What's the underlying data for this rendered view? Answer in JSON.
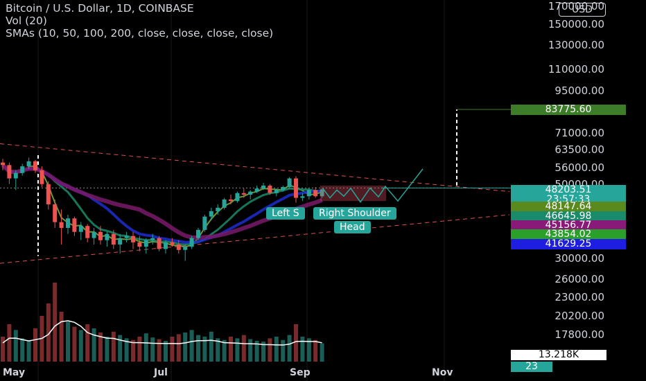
{
  "legend": {
    "symbol": "Bitcoin / U.S. Dollar, 1D, COINBASE",
    "volume": "Vol (20)",
    "smas": "SMAs (10, 50, 100, 200, close, close, close, close)"
  },
  "currency_button": "USD",
  "colors": {
    "background": "#000000",
    "up_candle": "#26a69a",
    "down_candle": "#ef5350",
    "sma10": "#7fb342",
    "sma50": "#1a8b6a",
    "sma100": "#1e2ccf",
    "sma200": "#7a1a6a",
    "channel": "#e05050",
    "pattern": "#26a69a"
  },
  "chart_data": [
    {
      "type": "candlestick",
      "title": "Bitcoin / U.S. Dollar, 1D, COINBASE",
      "x_ticks": [
        "May",
        "Jul",
        "Sep",
        "Nov"
      ],
      "y_ticks": [
        "170000.00",
        "150000.00",
        "130000.00",
        "110000.00",
        "95000.00",
        "71000.00",
        "63500.00",
        "56000.00",
        "50000.00",
        "30000.00",
        "26000.00",
        "23000.00",
        "20200.00",
        "17800.00"
      ],
      "scale": "log",
      "ylim": [
        15500,
        180000
      ],
      "price_tags": [
        {
          "value": "83775.60",
          "color": "#3d7d2a",
          "label": "target"
        },
        {
          "value": "48203.51",
          "color": "#26a69a",
          "label": "last price"
        },
        {
          "value": "23:57:33",
          "color": "#26a69a",
          "label": "countdown"
        },
        {
          "value": "48147.64",
          "color": "#5a8a1e",
          "label": "SMA 10"
        },
        {
          "value": "46645.98",
          "color": "#1a8b6a",
          "label": "SMA 50"
        },
        {
          "value": "45156.77",
          "color": "#8a1a7a",
          "label": "SMA 100"
        },
        {
          "value": "43854.02",
          "color": "#2aa02a",
          "label": "SMA 200"
        },
        {
          "value": "41629.25",
          "color": "#1e1ee0",
          "label": "SMA"
        }
      ],
      "volume_tag": "13.218K",
      "volume_tag2": "23",
      "annotations": [
        "Left S",
        "Right Shoulder",
        "Head"
      ],
      "ohlc_approx": [
        [
          58000,
          59500,
          55000,
          57000
        ],
        [
          57000,
          58000,
          50000,
          52000
        ],
        [
          52000,
          55000,
          48000,
          54000
        ],
        [
          54000,
          57500,
          53000,
          56500
        ],
        [
          56500,
          60000,
          55500,
          58500
        ],
        [
          58500,
          59000,
          54000,
          55000
        ],
        [
          55000,
          56500,
          49000,
          50000
        ],
        [
          50000,
          51000,
          42000,
          43500
        ],
        [
          43500,
          45000,
          37000,
          38500
        ],
        [
          38500,
          42000,
          33000,
          37000
        ],
        [
          37000,
          40500,
          35500,
          39500
        ],
        [
          39500,
          40000,
          35000,
          36000
        ],
        [
          36000,
          38500,
          34000,
          37500
        ],
        [
          37500,
          38000,
          33500,
          34500
        ],
        [
          34500,
          37000,
          33000,
          36000
        ],
        [
          36000,
          37500,
          33000,
          34000
        ],
        [
          34000,
          36000,
          32500,
          35500
        ],
        [
          35500,
          36500,
          32000,
          33000
        ],
        [
          33000,
          35500,
          31000,
          34500
        ],
        [
          34500,
          36000,
          33500,
          35000
        ],
        [
          35000,
          36000,
          32000,
          33500
        ],
        [
          33500,
          35000,
          31500,
          32500
        ],
        [
          32500,
          34500,
          31000,
          34000
        ],
        [
          34000,
          35500,
          33000,
          34500
        ],
        [
          34500,
          35000,
          31500,
          32000
        ],
        [
          32000,
          34000,
          31000,
          33500
        ],
        [
          33500,
          34500,
          32500,
          33000
        ],
        [
          33000,
          34000,
          31000,
          31800
        ],
        [
          31800,
          33000,
          29500,
          32500
        ],
        [
          32500,
          35000,
          32000,
          34500
        ],
        [
          34500,
          37000,
          34000,
          36500
        ],
        [
          36500,
          40500,
          36000,
          40000
        ],
        [
          40000,
          42500,
          39000,
          41500
        ],
        [
          41500,
          43500,
          40500,
          42500
        ],
        [
          42500,
          45500,
          42000,
          45000
        ],
        [
          45000,
          46500,
          43500,
          44500
        ],
        [
          44500,
          47500,
          44000,
          47000
        ],
        [
          47000,
          48500,
          45500,
          46500
        ],
        [
          46500,
          48000,
          45000,
          47500
        ],
        [
          47500,
          49500,
          47000,
          48500
        ],
        [
          48500,
          50500,
          48000,
          49500
        ],
        [
          49500,
          50000,
          46500,
          47000
        ],
        [
          47000,
          48500,
          46000,
          48000
        ],
        [
          48000,
          49500,
          47500,
          49000
        ],
        [
          49000,
          52500,
          48500,
          52000
        ],
        [
          52000,
          52800,
          44000,
          45500
        ],
        [
          45500,
          47000,
          44500,
          46000
        ],
        [
          46000,
          48500,
          45000,
          48000
        ],
        [
          48000,
          49000,
          45500,
          46000
        ],
        [
          46000,
          48500,
          45500,
          48203.51
        ]
      ],
      "volume_approx": [
        30,
        45,
        38,
        28,
        25,
        40,
        55,
        70,
        95,
        60,
        48,
        42,
        38,
        45,
        40,
        35,
        30,
        36,
        32,
        28,
        26,
        30,
        34,
        29,
        27,
        25,
        30,
        33,
        35,
        38,
        32,
        30,
        36,
        28,
        26,
        30,
        28,
        32,
        27,
        25,
        24,
        28,
        30,
        26,
        32,
        45,
        30,
        28,
        26,
        22
      ]
    }
  ]
}
